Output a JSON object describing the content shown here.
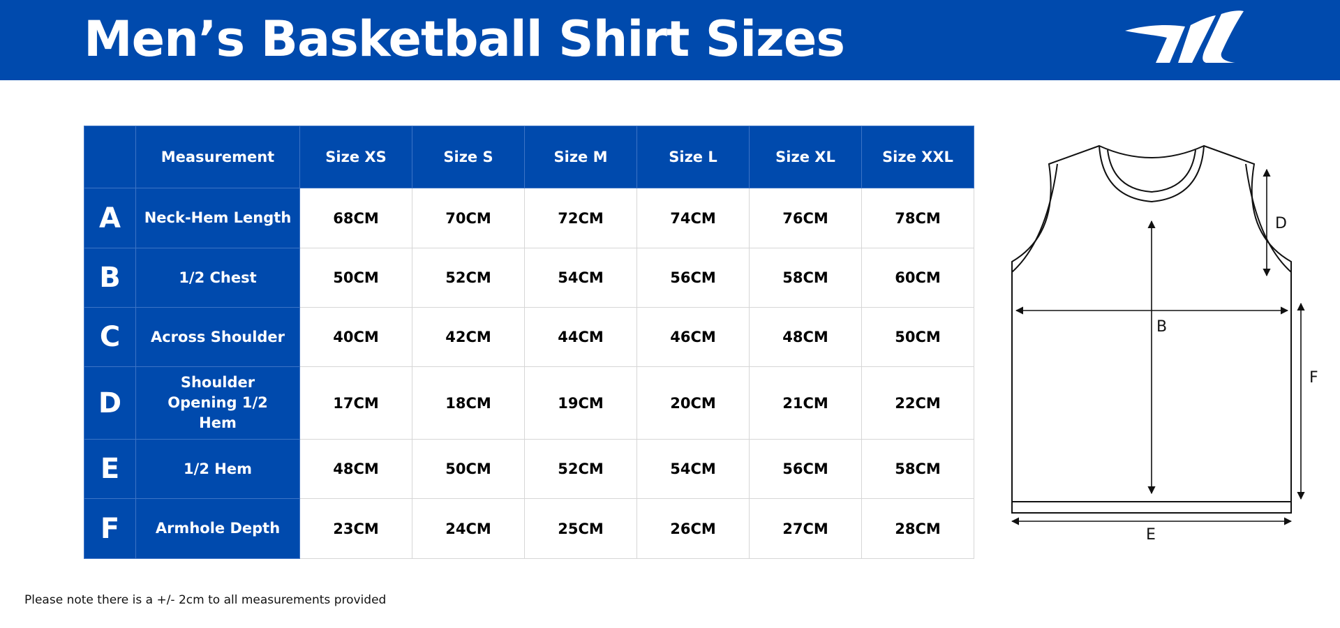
{
  "header": {
    "title": "Men’s Basketball Shirt Sizes",
    "brand_color": "#004aad",
    "logo_icon": "brand-logo-icon"
  },
  "table": {
    "columns": [
      "",
      "Measurement",
      "Size XS",
      "Size S",
      "Size M",
      "Size L",
      "Size XL",
      "Size XXL"
    ],
    "rows": [
      {
        "letter": "A",
        "measurement": "Neck-Hem Length",
        "values": [
          "68CM",
          "70CM",
          "72CM",
          "74CM",
          "76CM",
          "78CM"
        ]
      },
      {
        "letter": "B",
        "measurement": "1/2 Chest",
        "values": [
          "50CM",
          "52CM",
          "54CM",
          "56CM",
          "58CM",
          "60CM"
        ]
      },
      {
        "letter": "C",
        "measurement": "Across Shoulder",
        "values": [
          "40CM",
          "42CM",
          "44CM",
          "46CM",
          "48CM",
          "50CM"
        ]
      },
      {
        "letter": "D",
        "measurement": "Shoulder Opening 1/2 Hem",
        "values": [
          "17CM",
          "18CM",
          "19CM",
          "20CM",
          "21CM",
          "22CM"
        ]
      },
      {
        "letter": "E",
        "measurement": "1/2 Hem",
        "values": [
          "48CM",
          "50CM",
          "52CM",
          "54CM",
          "56CM",
          "58CM"
        ]
      },
      {
        "letter": "F",
        "measurement": "Armhole Depth",
        "values": [
          "23CM",
          "24CM",
          "25CM",
          "26CM",
          "27CM",
          "28CM"
        ]
      }
    ]
  },
  "diagram": {
    "labels": {
      "d": "D",
      "b": "B",
      "f": "F",
      "e": "E"
    }
  },
  "note": "Please note there is a +/- 2cm to all measurements provided"
}
